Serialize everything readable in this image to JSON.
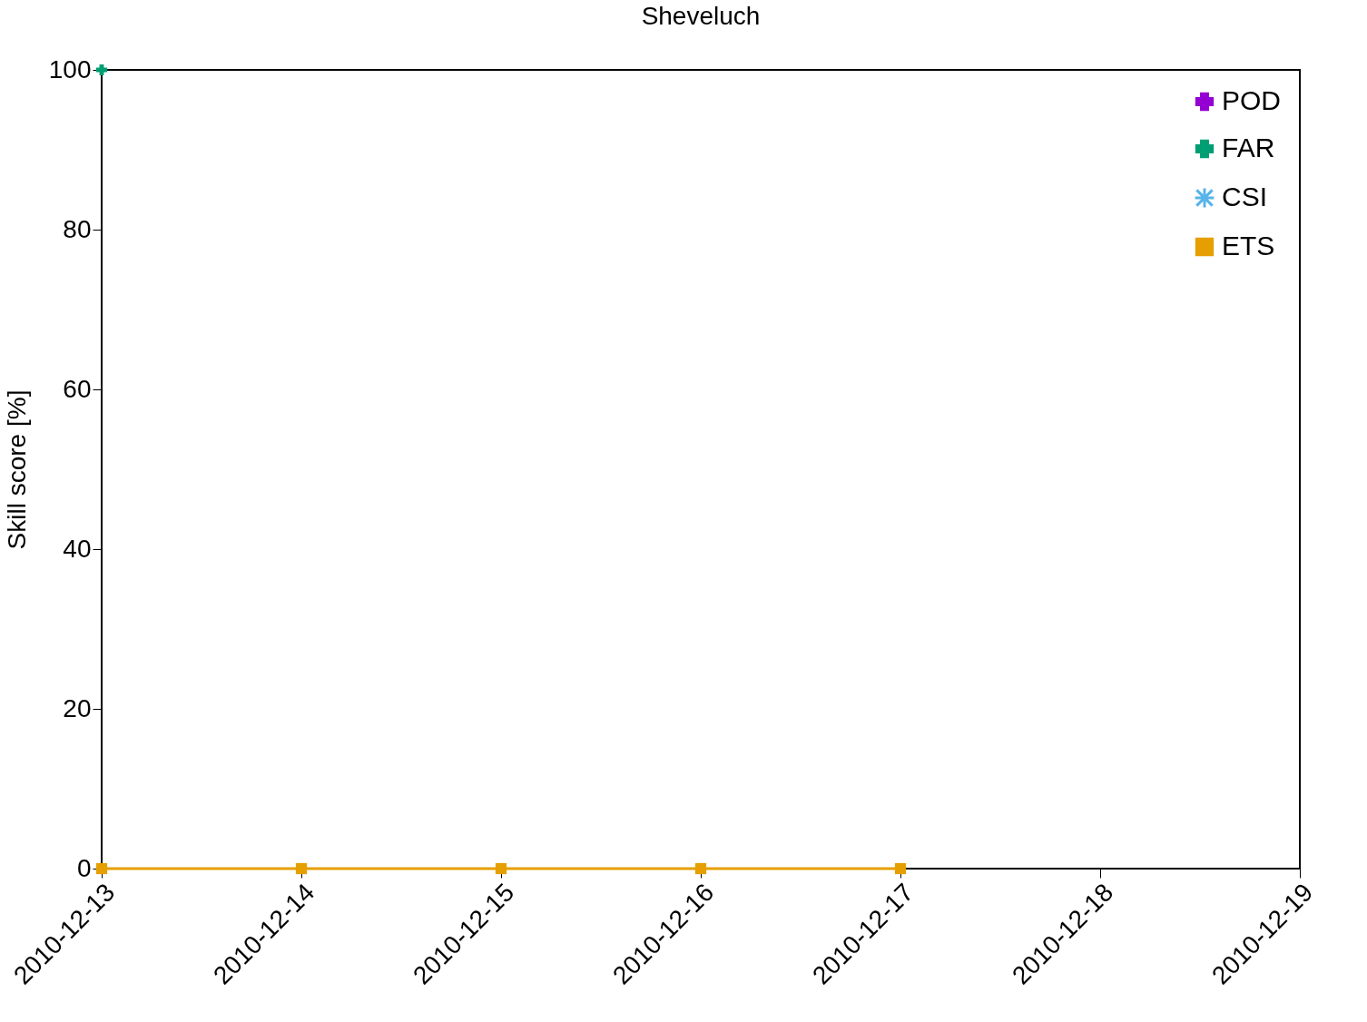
{
  "chart_data": {
    "type": "line",
    "title": "Sheveluch",
    "ylabel": "Skill score [%]",
    "x": [
      "2010-12-13",
      "2010-12-14",
      "2010-12-15",
      "2010-12-16",
      "2010-12-17"
    ],
    "series": [
      {
        "name": "POD",
        "color": "#9400d3",
        "marker": "cross",
        "values": [
          null,
          null,
          null,
          null,
          null
        ]
      },
      {
        "name": "FAR",
        "color": "#009e73",
        "marker": "cross",
        "values": [
          100,
          null,
          null,
          null,
          null
        ]
      },
      {
        "name": "CSI",
        "color": "#56b4e9",
        "marker": "star",
        "values": [
          null,
          null,
          null,
          null,
          null
        ]
      },
      {
        "name": "ETS",
        "color": "#e69f00",
        "marker": "square",
        "values": [
          0,
          0,
          0,
          0,
          0
        ]
      }
    ],
    "xlim": [
      "2010-12-13",
      "2010-12-19"
    ],
    "xticks": [
      "2010-12-13",
      "2010-12-14",
      "2010-12-15",
      "2010-12-16",
      "2010-12-17",
      "2010-12-18",
      "2010-12-19"
    ],
    "ylim": [
      0,
      100
    ],
    "yticks": [
      0,
      20,
      40,
      60,
      80,
      100
    ],
    "grid": false,
    "legend": "top right",
    "line_style": "solid"
  }
}
